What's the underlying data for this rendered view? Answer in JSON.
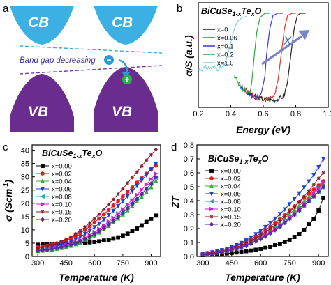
{
  "panel_a": {
    "letter": "a",
    "cb_label": "CB",
    "vb_label": "VB",
    "gap_text": "Band gap decreasing",
    "electron_symbol": "−",
    "hole_symbol": "+",
    "colors": {
      "cb": "#3db0e3",
      "vb": "#6a2c8f",
      "upper_line": "#3aa9dd",
      "lower_line": "#7a3aa0",
      "arrow": "#2c9ad6",
      "hole": "#2bb24c"
    }
  },
  "panels": {
    "b": {
      "letter": "b",
      "formula": {
        "base": "BiCuSe",
        "sub1": "1-x",
        "mid": "Te",
        "sub2": "x",
        "end": "O"
      },
      "xlabel": "Energy (eV)",
      "ylabel": "α/S (a.u.)",
      "arrow_label": "X"
    },
    "c": {
      "letter": "c",
      "formula": {
        "base": "BiCuSe",
        "sub1": "1-x",
        "mid": "Te",
        "sub2": "x",
        "end": "O"
      },
      "xlabel": "Temperature (K)",
      "ylabel": "σ (Scm",
      "ylabel_sup": "-1",
      "ylabel_end": ")"
    },
    "d": {
      "letter": "d",
      "formula": {
        "base": "BiCuSe",
        "sub1": "1-x",
        "mid": "Te",
        "sub2": "x",
        "end": "O"
      },
      "xlabel": "Temperature (K)",
      "ylabel": "ZT"
    }
  },
  "chart_data": [
    {
      "id": "b",
      "type": "line",
      "xlabel": "Energy (eV)",
      "ylabel": "α/S (a.u.)",
      "xlim": [
        0.2,
        1.0
      ],
      "ylim": [
        0,
        1
      ],
      "x_ticks": [
        0.2,
        0.4,
        0.6,
        0.8,
        1.0
      ],
      "x_tick_labels": [
        "0.2",
        "0.4",
        "0.6",
        "0.8",
        "1.0"
      ],
      "legend_position": "top-left",
      "series": [
        {
          "name": "x=0",
          "color": "#222222",
          "edge": 0.77,
          "noise_start": 0.5,
          "points": [
            [
              0.5,
              0.14
            ],
            [
              0.55,
              0.1
            ],
            [
              0.6,
              0.08
            ],
            [
              0.65,
              0.07
            ],
            [
              0.7,
              0.08
            ],
            [
              0.73,
              0.12
            ],
            [
              0.75,
              0.25
            ],
            [
              0.77,
              0.5
            ],
            [
              0.79,
              0.75
            ],
            [
              0.81,
              0.88
            ],
            [
              0.83,
              0.9
            ],
            [
              0.86,
              0.9
            ]
          ]
        },
        {
          "name": "x=0.06",
          "color": "#e2342a",
          "edge": 0.71,
          "noise_start": 0.48,
          "points": [
            [
              0.48,
              0.18
            ],
            [
              0.55,
              0.1
            ],
            [
              0.6,
              0.08
            ],
            [
              0.64,
              0.08
            ],
            [
              0.67,
              0.12
            ],
            [
              0.69,
              0.25
            ],
            [
              0.71,
              0.5
            ],
            [
              0.73,
              0.75
            ],
            [
              0.75,
              0.88
            ],
            [
              0.78,
              0.9
            ],
            [
              0.8,
              0.9
            ]
          ]
        },
        {
          "name": "x=0.1",
          "color": "#3a3ad0",
          "edge": 0.62,
          "noise_start": 0.45,
          "points": [
            [
              0.45,
              0.22
            ],
            [
              0.5,
              0.14
            ],
            [
              0.54,
              0.1
            ],
            [
              0.57,
              0.1
            ],
            [
              0.59,
              0.14
            ],
            [
              0.61,
              0.3
            ],
            [
              0.62,
              0.5
            ],
            [
              0.64,
              0.75
            ],
            [
              0.66,
              0.88
            ],
            [
              0.69,
              0.9
            ],
            [
              0.72,
              0.9
            ]
          ]
        },
        {
          "name": "x=0.2",
          "color": "#2fa83a",
          "edge": 0.545,
          "noise_start": 0.42,
          "points": [
            [
              0.42,
              0.3
            ],
            [
              0.46,
              0.2
            ],
            [
              0.5,
              0.14
            ],
            [
              0.52,
              0.15
            ],
            [
              0.53,
              0.25
            ],
            [
              0.545,
              0.5
            ],
            [
              0.56,
              0.72
            ],
            [
              0.58,
              0.86
            ],
            [
              0.61,
              0.9
            ],
            [
              0.64,
              0.9
            ]
          ]
        },
        {
          "name": "x=1.0",
          "color": "#7fd0ec",
          "edge": 0.39,
          "noise_start": 0.2,
          "points": [
            [
              0.2,
              0.36
            ],
            [
              0.25,
              0.38
            ],
            [
              0.3,
              0.38
            ],
            [
              0.33,
              0.37
            ],
            [
              0.36,
              0.4
            ],
            [
              0.38,
              0.5
            ],
            [
              0.4,
              0.62
            ],
            [
              0.42,
              0.74
            ],
            [
              0.44,
              0.82
            ],
            [
              0.47,
              0.86
            ],
            [
              0.5,
              0.87
            ]
          ]
        }
      ]
    },
    {
      "id": "c",
      "type": "line",
      "xlabel": "Temperature (K)",
      "ylabel": "σ (Scm-1)",
      "xlim": [
        270,
        950
      ],
      "ylim": [
        0,
        42
      ],
      "x_ticks": [
        300,
        450,
        600,
        750,
        900
      ],
      "y_ticks": [
        0,
        5,
        10,
        15,
        20,
        25,
        30,
        35,
        40
      ],
      "legend_position": "top-left",
      "x": [
        300,
        325,
        350,
        375,
        400,
        425,
        450,
        475,
        500,
        525,
        550,
        575,
        600,
        625,
        650,
        675,
        700,
        725,
        750,
        775,
        800,
        825,
        850,
        875,
        900,
        925
      ],
      "series": [
        {
          "name": "x=0.00",
          "color": "#000000",
          "marker": "square",
          "values": [
            4.4,
            4.5,
            4.6,
            4.6,
            4.7,
            4.8,
            4.8,
            4.9,
            5.0,
            5.1,
            5.2,
            5.3,
            5.5,
            5.7,
            6.0,
            6.3,
            6.7,
            7.2,
            7.8,
            8.6,
            9.5,
            10.5,
            11.7,
            13.0,
            14.2,
            15.4
          ]
        },
        {
          "name": "x=0.02",
          "color": "#e02020",
          "marker": "circle",
          "values": [
            3.5,
            3.8,
            4.1,
            4.5,
            4.9,
            5.5,
            6.1,
            6.9,
            7.8,
            8.8,
            10.0,
            11.3,
            12.8,
            14.3,
            15.9,
            17.5,
            19.2,
            20.9,
            22.6,
            24.3,
            26.0,
            27.8,
            29.5,
            31.2,
            32.8,
            34.2
          ]
        },
        {
          "name": "x=0.04",
          "color": "#30b030",
          "marker": "triangle-up",
          "values": [
            2.0,
            2.2,
            2.4,
            2.6,
            2.9,
            3.2,
            3.6,
            4.0,
            4.6,
            5.2,
            6.0,
            6.9,
            7.9,
            9.0,
            10.2,
            11.5,
            12.9,
            14.3,
            15.8,
            17.4,
            19.0,
            20.7,
            22.4,
            24.2,
            26.1,
            28.5
          ]
        },
        {
          "name": "x=0.06",
          "color": "#2040d0",
          "marker": "triangle-down",
          "values": [
            2.5,
            2.8,
            3.1,
            3.5,
            3.9,
            4.4,
            5.0,
            5.7,
            6.5,
            7.4,
            8.5,
            9.7,
            11.0,
            12.4,
            13.9,
            15.5,
            17.2,
            19.0,
            20.8,
            22.7,
            24.6,
            26.6,
            28.6,
            30.7,
            32.8,
            34.8
          ]
        },
        {
          "name": "x=0.08",
          "color": "#2aa3a3",
          "marker": "triangle-left",
          "values": [
            2.2,
            2.4,
            2.6,
            2.9,
            3.2,
            3.6,
            4.0,
            4.5,
            5.1,
            5.8,
            6.6,
            7.5,
            8.5,
            9.6,
            10.8,
            12.1,
            13.5,
            15.0,
            16.6,
            18.2,
            19.9,
            21.7,
            23.6,
            25.5,
            27.5,
            29.6
          ]
        },
        {
          "name": "x=0.10",
          "color": "#d020d0",
          "marker": "triangle-right",
          "values": [
            2.3,
            2.5,
            2.8,
            3.1,
            3.4,
            3.8,
            4.3,
            4.8,
            5.5,
            6.2,
            7.1,
            8.1,
            9.2,
            10.4,
            11.7,
            13.1,
            14.6,
            16.2,
            17.8,
            19.5,
            21.3,
            23.2,
            25.1,
            27.1,
            29.1,
            31.2
          ]
        },
        {
          "name": "x=0.15",
          "color": "#8a1a2a",
          "marker": "star",
          "values": [
            3.0,
            3.4,
            3.8,
            4.3,
            4.9,
            5.6,
            6.4,
            7.4,
            8.5,
            9.7,
            11.1,
            12.6,
            14.2,
            15.9,
            17.7,
            19.6,
            21.5,
            23.5,
            25.5,
            27.6,
            29.7,
            31.8,
            34.0,
            36.2,
            38.3,
            40.3
          ]
        },
        {
          "name": "x=0.20",
          "color": "#5a2aa0",
          "marker": "diamond",
          "values": [
            2.1,
            2.3,
            2.5,
            2.8,
            3.1,
            3.5,
            3.9,
            4.4,
            5.0,
            5.7,
            6.5,
            7.4,
            8.4,
            9.5,
            10.7,
            12.0,
            13.4,
            14.9,
            16.5,
            18.1,
            19.8,
            21.6,
            23.5,
            25.4,
            27.4,
            29.9
          ]
        }
      ]
    },
    {
      "id": "d",
      "type": "line",
      "xlabel": "Temperature (K)",
      "ylabel": "ZT",
      "xlim": [
        270,
        950
      ],
      "ylim": [
        0,
        0.8
      ],
      "x_ticks": [
        300,
        450,
        600,
        750,
        900
      ],
      "y_ticks": [
        0.0,
        0.1,
        0.2,
        0.3,
        0.4,
        0.5,
        0.6,
        0.7,
        0.8
      ],
      "legend_position": "top-left",
      "x": [
        300,
        325,
        350,
        375,
        400,
        425,
        450,
        475,
        500,
        525,
        550,
        575,
        600,
        625,
        650,
        675,
        700,
        725,
        750,
        775,
        800,
        825,
        850,
        875,
        900,
        925
      ],
      "series": [
        {
          "name": "x=0.00",
          "color": "#000000",
          "marker": "square",
          "values": [
            0.01,
            0.012,
            0.014,
            0.016,
            0.018,
            0.021,
            0.024,
            0.028,
            0.032,
            0.037,
            0.042,
            0.048,
            0.055,
            0.062,
            0.07,
            0.08,
            0.09,
            0.105,
            0.12,
            0.14,
            0.16,
            0.19,
            0.23,
            0.27,
            0.33,
            0.42
          ]
        },
        {
          "name": "x=0.02",
          "color": "#e02020",
          "marker": "circle",
          "values": [
            0.02,
            0.025,
            0.031,
            0.038,
            0.046,
            0.055,
            0.066,
            0.078,
            0.092,
            0.108,
            0.125,
            0.145,
            0.166,
            0.19,
            0.215,
            0.242,
            0.27,
            0.3,
            0.33,
            0.36,
            0.39,
            0.42,
            0.45,
            0.48,
            0.51,
            0.54
          ]
        },
        {
          "name": "x=0.04",
          "color": "#30b030",
          "marker": "triangle-up",
          "values": [
            0.015,
            0.019,
            0.024,
            0.03,
            0.037,
            0.045,
            0.055,
            0.066,
            0.079,
            0.094,
            0.11,
            0.129,
            0.149,
            0.171,
            0.195,
            0.22,
            0.247,
            0.275,
            0.304,
            0.334,
            0.364,
            0.395,
            0.426,
            0.458,
            0.49,
            0.52
          ]
        },
        {
          "name": "x=0.06",
          "color": "#2040d0",
          "marker": "triangle-down",
          "values": [
            0.018,
            0.023,
            0.029,
            0.036,
            0.045,
            0.055,
            0.067,
            0.081,
            0.097,
            0.115,
            0.136,
            0.159,
            0.184,
            0.211,
            0.24,
            0.271,
            0.304,
            0.338,
            0.374,
            0.412,
            0.452,
            0.494,
            0.538,
            0.585,
            0.64,
            0.7
          ]
        },
        {
          "name": "x=0.08",
          "color": "#2aa3a3",
          "marker": "triangle-left",
          "values": [
            0.013,
            0.017,
            0.021,
            0.026,
            0.032,
            0.039,
            0.047,
            0.057,
            0.068,
            0.081,
            0.095,
            0.111,
            0.129,
            0.149,
            0.17,
            0.193,
            0.218,
            0.244,
            0.272,
            0.301,
            0.332,
            0.364,
            0.397,
            0.43,
            0.462,
            0.495
          ]
        },
        {
          "name": "x=0.10",
          "color": "#d020d0",
          "marker": "triangle-right",
          "values": [
            0.014,
            0.018,
            0.022,
            0.027,
            0.033,
            0.041,
            0.049,
            0.059,
            0.071,
            0.084,
            0.099,
            0.115,
            0.133,
            0.153,
            0.175,
            0.198,
            0.223,
            0.25,
            0.279,
            0.31,
            0.342,
            0.376,
            0.412,
            0.45,
            0.49,
            0.53
          ]
        },
        {
          "name": "x=0.15",
          "color": "#8a1a2a",
          "marker": "star",
          "values": [
            0.016,
            0.02,
            0.025,
            0.031,
            0.038,
            0.046,
            0.056,
            0.067,
            0.08,
            0.095,
            0.112,
            0.131,
            0.152,
            0.175,
            0.2,
            0.227,
            0.256,
            0.287,
            0.32,
            0.355,
            0.392,
            0.431,
            0.472,
            0.515,
            0.56,
            0.6
          ]
        },
        {
          "name": "x=0.20",
          "color": "#5a2aa0",
          "marker": "diamond",
          "values": [
            0.012,
            0.015,
            0.019,
            0.024,
            0.03,
            0.037,
            0.045,
            0.054,
            0.065,
            0.077,
            0.091,
            0.107,
            0.125,
            0.145,
            0.166,
            0.189,
            0.214,
            0.241,
            0.27,
            0.3,
            0.331,
            0.363,
            0.396,
            0.43,
            0.465,
            0.5
          ]
        }
      ]
    }
  ]
}
